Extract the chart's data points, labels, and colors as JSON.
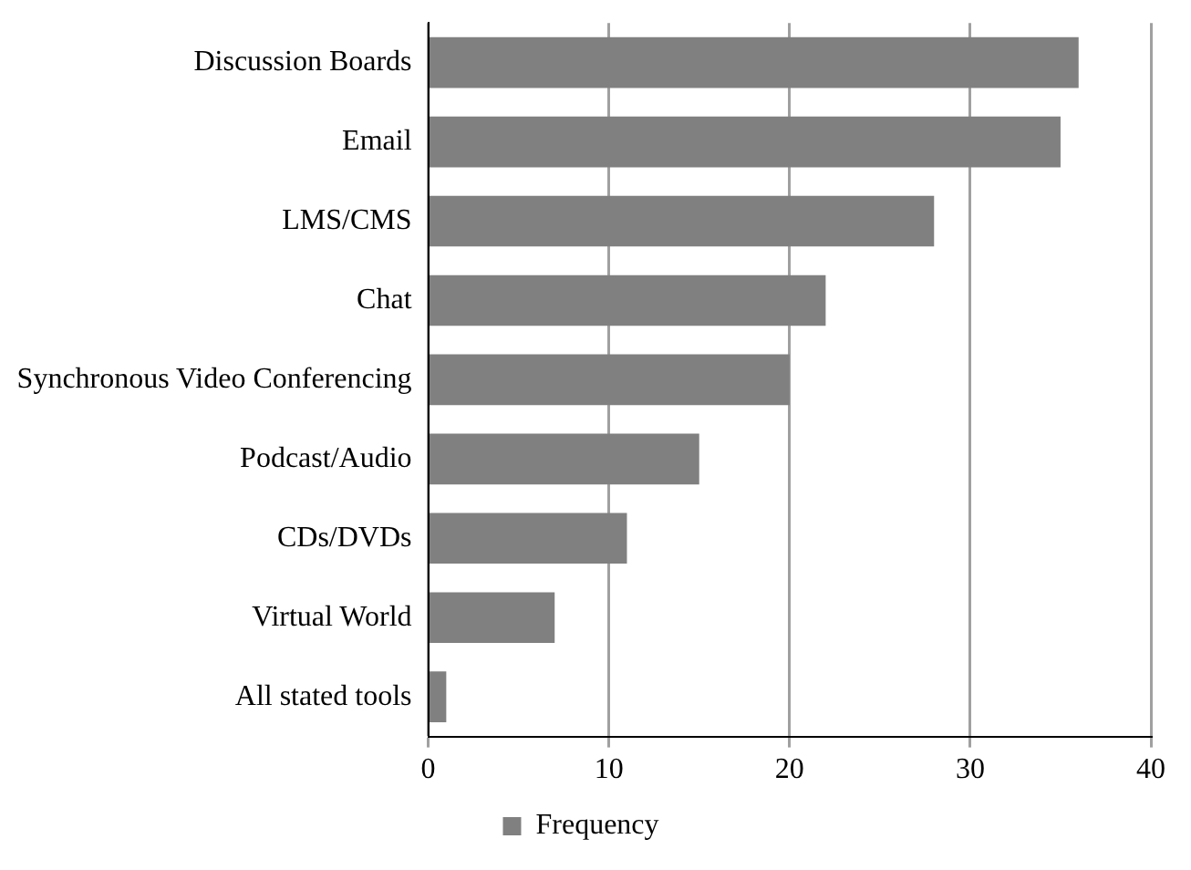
{
  "chart_data": {
    "type": "bar",
    "orientation": "horizontal",
    "categories": [
      "Discussion Boards",
      "Email",
      "LMS/CMS",
      "Chat",
      "Synchronous Video Conferencing",
      "Podcast/Audio",
      "CDs/DVDs",
      "Virtual World",
      "All stated tools"
    ],
    "series": [
      {
        "name": "Frequency",
        "color": "#808080",
        "values": [
          36,
          35,
          28,
          22,
          20,
          15,
          11,
          7,
          1
        ]
      }
    ],
    "xlim": [
      0,
      40
    ],
    "xticks": [
      0,
      10,
      20,
      30,
      40
    ],
    "grid": "x",
    "legend": "bottom"
  }
}
